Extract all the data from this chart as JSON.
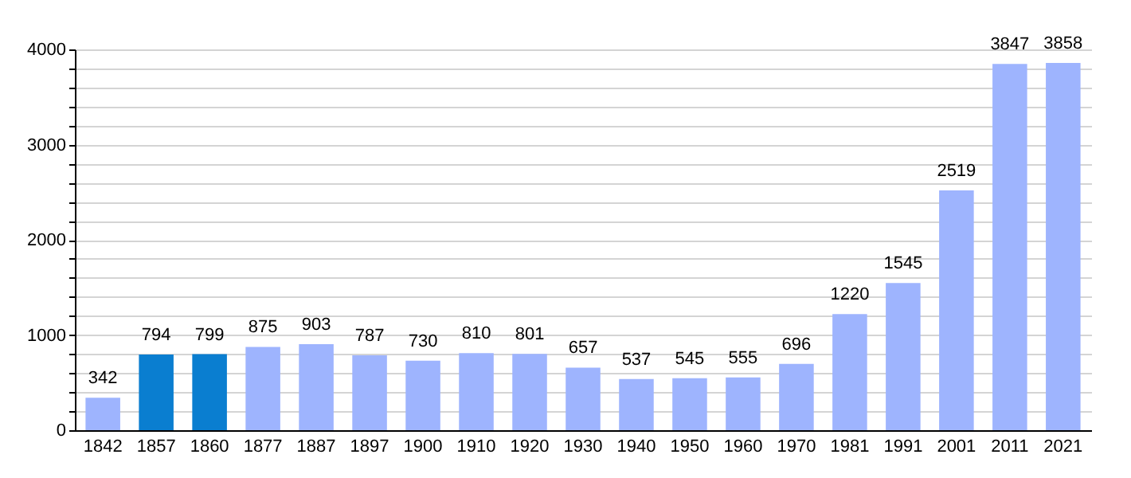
{
  "chart_data": {
    "type": "bar",
    "categories": [
      "1842",
      "1857",
      "1860",
      "1877",
      "1887",
      "1897",
      "1900",
      "1910",
      "1920",
      "1930",
      "1940",
      "1950",
      "1960",
      "1970",
      "1981",
      "1991",
      "2001",
      "2011",
      "2021"
    ],
    "values": [
      342,
      794,
      799,
      875,
      903,
      787,
      730,
      810,
      801,
      657,
      537,
      545,
      555,
      696,
      1220,
      1545,
      2519,
      3847,
      3858
    ],
    "colors": [
      "#9eb4fe",
      "#0a7ed0",
      "#0a7ed0",
      "#9eb4fe",
      "#9eb4fe",
      "#9eb4fe",
      "#9eb4fe",
      "#9eb4fe",
      "#9eb4fe",
      "#9eb4fe",
      "#9eb4fe",
      "#9eb4fe",
      "#9eb4fe",
      "#9eb4fe",
      "#9eb4fe",
      "#9eb4fe",
      "#9eb4fe",
      "#9eb4fe",
      "#9eb4fe"
    ],
    "ylim": [
      0,
      4000
    ],
    "yticks": [
      0,
      {
        "value": 200,
        "label": null
      },
      {
        "value": 400,
        "label": null
      },
      {
        "value": 600,
        "label": null
      },
      {
        "value": 800,
        "label": null
      },
      1000,
      {
        "value": 1200,
        "label": null
      },
      {
        "value": 1400,
        "label": null
      },
      {
        "value": 1600,
        "label": null
      },
      {
        "value": 1800,
        "label": null
      },
      2000,
      {
        "value": 2200,
        "label": null
      },
      {
        "value": 2400,
        "label": null
      },
      {
        "value": 2600,
        "label": null
      },
      {
        "value": 2800,
        "label": null
      },
      3000,
      {
        "value": 3200,
        "label": null
      },
      {
        "value": 3400,
        "label": null
      },
      {
        "value": 3600,
        "label": null
      },
      {
        "value": 3800,
        "label": null
      },
      4000
    ],
    "grid": true,
    "data_labels": true
  }
}
